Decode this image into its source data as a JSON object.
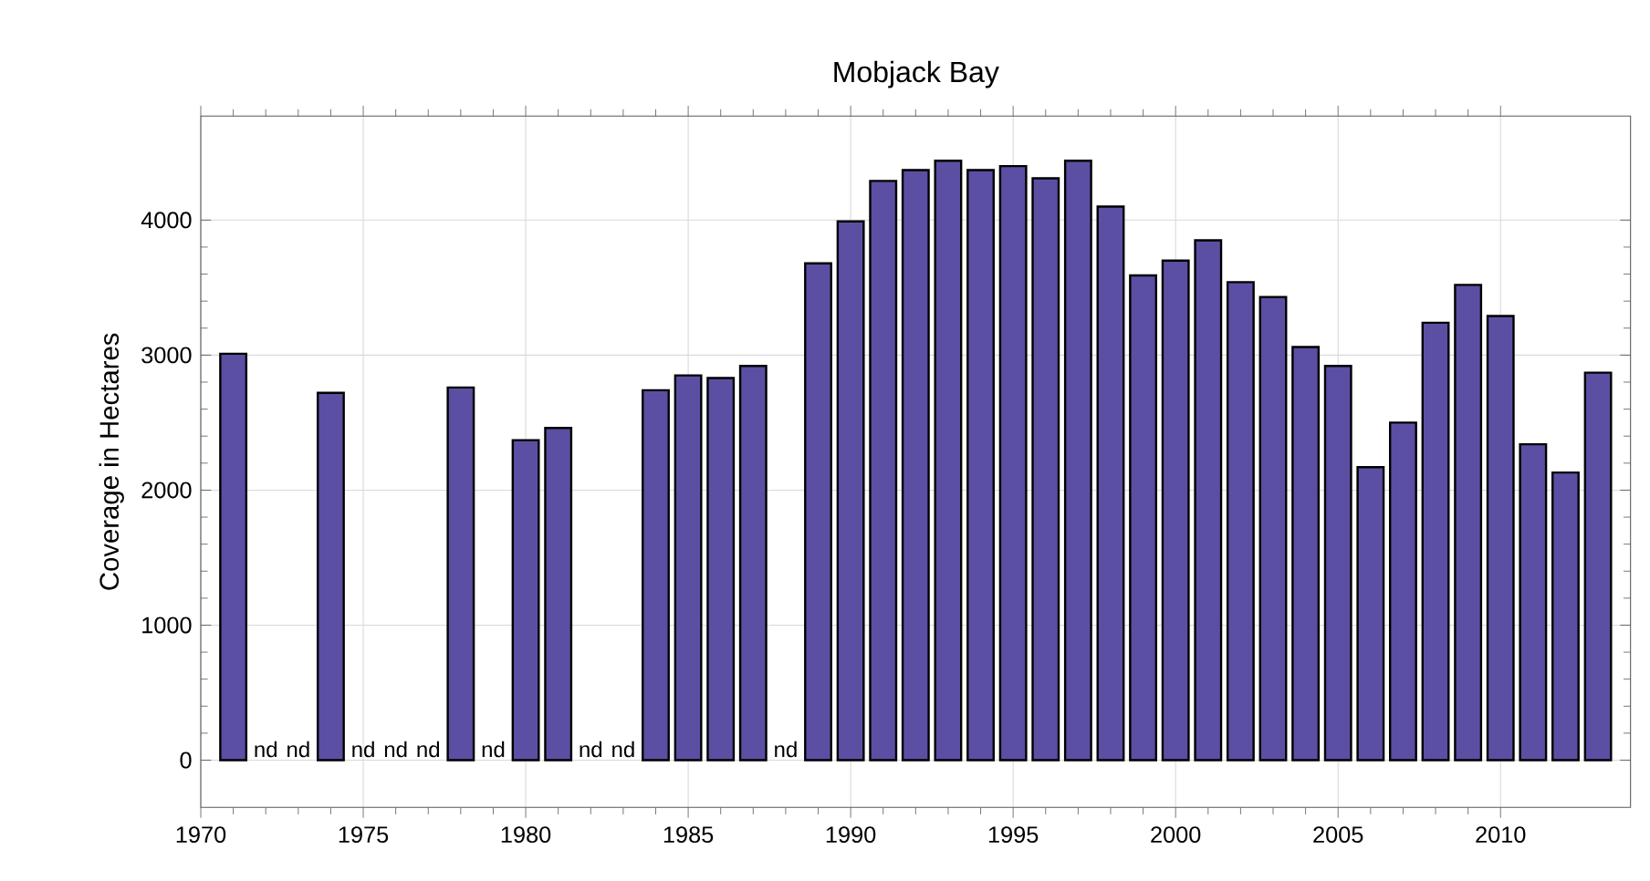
{
  "chart_data": {
    "type": "bar",
    "title": "Mobjack Bay",
    "ylabel": "Coverage in Hectares",
    "x": [
      1971,
      1972,
      1973,
      1974,
      1975,
      1976,
      1977,
      1978,
      1979,
      1980,
      1981,
      1982,
      1983,
      1984,
      1985,
      1986,
      1987,
      1988,
      1989,
      1990,
      1991,
      1992,
      1993,
      1994,
      1995,
      1996,
      1997,
      1998,
      1999,
      2000,
      2001,
      2002,
      2003,
      2004,
      2005,
      2006,
      2007,
      2008,
      2009,
      2010,
      2011,
      2012,
      2013
    ],
    "values": [
      3010,
      null,
      null,
      2720,
      null,
      null,
      null,
      2760,
      null,
      2370,
      2460,
      null,
      null,
      2740,
      2850,
      2830,
      2920,
      null,
      3680,
      3990,
      4290,
      4370,
      4440,
      4370,
      4400,
      4310,
      4440,
      4100,
      3590,
      3700,
      3850,
      3540,
      3430,
      3060,
      2920,
      2170,
      2500,
      3240,
      3520,
      3290,
      2340,
      2130,
      2870
    ],
    "value_labels": [
      null,
      "nd",
      "nd",
      null,
      "nd",
      "nd",
      "nd",
      null,
      "nd",
      null,
      null,
      "nd",
      "nd",
      null,
      null,
      null,
      null,
      "nd",
      null,
      null,
      null,
      null,
      null,
      null,
      null,
      null,
      null,
      null,
      null,
      null,
      null,
      null,
      null,
      null,
      null,
      null,
      null,
      null,
      null,
      null,
      null,
      null,
      null
    ],
    "color": "#5b4fa3",
    "xlim": [
      1970,
      2014
    ],
    "xticks": [
      1970,
      1975,
      1980,
      1985,
      1990,
      1995,
      2000,
      2005,
      2010
    ],
    "ylim": [
      -350,
      4770
    ],
    "yticks": [
      0,
      1000,
      2000,
      3000,
      4000
    ],
    "grid": true
  }
}
